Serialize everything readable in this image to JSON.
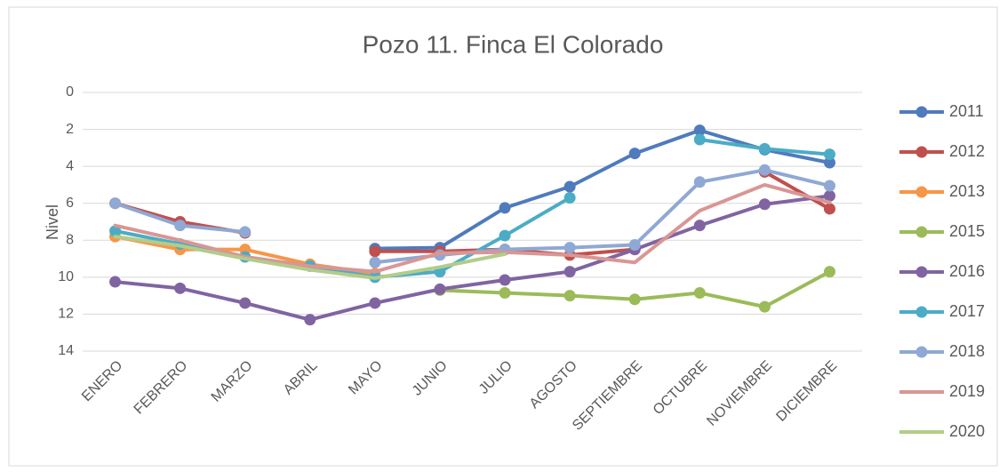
{
  "chart_data": {
    "type": "line",
    "title": "Pozo 11. Finca El Colorado",
    "y_label": "Nivel",
    "categories": [
      "ENERO",
      "FEBRERO",
      "MARZO",
      "ABRIL",
      "MAYO",
      "JUNIO",
      "JULIO",
      "AGOSTO",
      "SEPTIEMBRE",
      "OCTUBRE",
      "NOVIEMBRE",
      "DICIEMBRE"
    ],
    "ylim": [
      0,
      14
    ],
    "yticks": [
      0,
      2,
      4,
      6,
      8,
      10,
      12,
      14
    ],
    "y_inverted": true,
    "grid": true,
    "legend": "right",
    "series": [
      {
        "name": "2011",
        "color": "#4f7bbd",
        "markers": true,
        "values": [
          null,
          null,
          null,
          null,
          8.45,
          8.4,
          6.25,
          5.1,
          3.3,
          2.05,
          3.1,
          3.8
        ]
      },
      {
        "name": "2012",
        "color": "#c0504d",
        "markers": true,
        "values": [
          6.0,
          7.0,
          7.6,
          null,
          8.6,
          8.6,
          8.5,
          8.8,
          8.5,
          null,
          4.3,
          6.3
        ]
      },
      {
        "name": "2013",
        "color": "#f79646",
        "markers": true,
        "values": [
          7.8,
          8.5,
          8.5,
          9.3,
          9.8,
          null,
          null,
          null,
          null,
          null,
          null,
          null
        ]
      },
      {
        "name": "2015",
        "color": "#9bbb59",
        "markers": true,
        "values": [
          null,
          null,
          null,
          null,
          null,
          10.7,
          10.85,
          11.0,
          11.2,
          10.85,
          11.6,
          9.7
        ]
      },
      {
        "name": "2016",
        "color": "#8064a2",
        "markers": true,
        "values": [
          10.25,
          10.6,
          11.4,
          12.3,
          11.4,
          10.65,
          10.15,
          9.7,
          8.5,
          7.2,
          6.05,
          5.6
        ]
      },
      {
        "name": "2017",
        "color": "#4bacc6",
        "markers": true,
        "values": [
          7.5,
          8.2,
          8.9,
          9.4,
          10.0,
          9.7,
          7.75,
          5.7,
          null,
          2.55,
          3.05,
          3.35
        ]
      },
      {
        "name": "2018",
        "color": "#8fa8d4",
        "markers": true,
        "values": [
          6.0,
          7.2,
          7.55,
          null,
          9.2,
          8.8,
          8.5,
          8.4,
          8.25,
          4.85,
          4.2,
          5.05
        ]
      },
      {
        "name": "2019",
        "color": "#d99694",
        "markers": false,
        "values": [
          7.2,
          8.0,
          8.9,
          9.4,
          9.7,
          8.7,
          8.65,
          8.8,
          9.2,
          6.4,
          5.0,
          5.95
        ]
      },
      {
        "name": "2020",
        "color": "#b3cc8a",
        "markers": false,
        "values": [
          7.8,
          8.3,
          9.0,
          9.6,
          10.05,
          9.45,
          8.75,
          null,
          null,
          null,
          null,
          null
        ]
      }
    ]
  }
}
